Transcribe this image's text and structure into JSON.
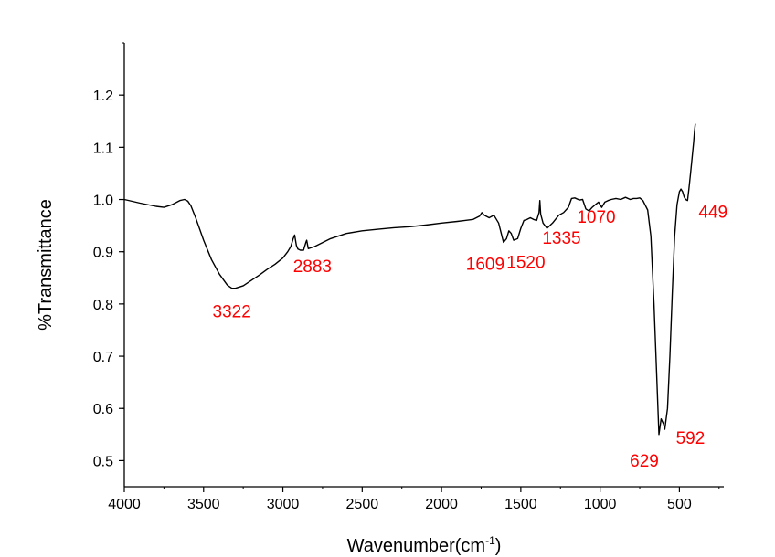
{
  "chart_data": {
    "type": "line",
    "title": "",
    "xlabel": "Wavenumber(cm",
    "xlabel_sup": "-1",
    "xlabel_close": ")",
    "ylabel": "%Transmittance",
    "xlim": [
      4000,
      220
    ],
    "ylim": [
      0.45,
      1.3
    ],
    "x_reversed": true,
    "grid": false,
    "x_ticks": [
      4000,
      3500,
      3000,
      2500,
      2000,
      1500,
      1000,
      500
    ],
    "x_tick_labels": [
      "4000",
      "3500",
      "3000",
      "2500",
      "2000",
      "1500",
      "1000",
      "500"
    ],
    "y_ticks": [
      0.5,
      0.6,
      0.7,
      0.8,
      0.9,
      1.0,
      1.1,
      1.2
    ],
    "y_tick_labels": [
      "0.5",
      "0.6",
      "0.7",
      "0.8",
      "0.9",
      "1.0",
      "1.1",
      "1.2"
    ],
    "annotation_color": "#ff0000",
    "line_color": "#000000",
    "annotations": [
      {
        "text": "3322",
        "x": 3322,
        "y": 0.83
      },
      {
        "text": "2883",
        "x": 2883,
        "y": 0.905
      },
      {
        "text": "1609",
        "x": 1609,
        "y": 0.92
      },
      {
        "text": "1520",
        "x": 1520,
        "y": 0.92
      },
      {
        "text": "1335",
        "x": 1335,
        "y": 0.95
      },
      {
        "text": "1070",
        "x": 1070,
        "y": 0.985
      },
      {
        "text": "629",
        "x": 629,
        "y": 0.55
      },
      {
        "text": "592",
        "x": 592,
        "y": 0.56
      },
      {
        "text": "449",
        "x": 449,
        "y": 1.0
      }
    ],
    "series": [
      {
        "x": [
          4000,
          3900,
          3800,
          3750,
          3700,
          3650,
          3620,
          3600,
          3580,
          3550,
          3500,
          3450,
          3400,
          3350,
          3322,
          3300,
          3250,
          3200,
          3150,
          3100,
          3050,
          3000,
          2970,
          2950,
          2935,
          2926,
          2915,
          2905,
          2890,
          2870,
          2855,
          2850,
          2840,
          2800,
          2700,
          2600,
          2500,
          2400,
          2300,
          2200,
          2100,
          2000,
          1900,
          1800,
          1760,
          1745,
          1730,
          1700,
          1670,
          1640,
          1609,
          1590,
          1575,
          1560,
          1545,
          1520,
          1500,
          1480,
          1460,
          1440,
          1420,
          1400,
          1385,
          1380,
          1375,
          1360,
          1335,
          1300,
          1260,
          1230,
          1200,
          1180,
          1160,
          1130,
          1110,
          1090,
          1070,
          1050,
          1030,
          1010,
          990,
          970,
          950,
          930,
          900,
          870,
          840,
          810,
          790,
          770,
          750,
          730,
          700,
          680,
          660,
          645,
          629,
          615,
          600,
          592,
          575,
          560,
          545,
          530,
          515,
          500,
          490,
          480,
          470,
          460,
          449,
          440,
          430,
          420,
          410,
          405,
          400
        ],
        "y": [
          1.0,
          0.993,
          0.987,
          0.985,
          0.99,
          0.998,
          1.0,
          0.997,
          0.988,
          0.965,
          0.922,
          0.885,
          0.857,
          0.836,
          0.83,
          0.83,
          0.835,
          0.845,
          0.855,
          0.866,
          0.876,
          0.888,
          0.9,
          0.91,
          0.925,
          0.932,
          0.912,
          0.905,
          0.903,
          0.903,
          0.918,
          0.922,
          0.906,
          0.91,
          0.925,
          0.935,
          0.94,
          0.943,
          0.946,
          0.948,
          0.951,
          0.955,
          0.958,
          0.962,
          0.968,
          0.975,
          0.97,
          0.965,
          0.97,
          0.955,
          0.918,
          0.925,
          0.94,
          0.935,
          0.922,
          0.925,
          0.945,
          0.96,
          0.962,
          0.965,
          0.962,
          0.96,
          0.975,
          0.998,
          0.972,
          0.955,
          0.945,
          0.955,
          0.97,
          0.975,
          0.985,
          1.002,
          1.003,
          0.999,
          1.0,
          0.982,
          0.978,
          0.985,
          0.99,
          0.995,
          0.985,
          0.995,
          0.998,
          1.0,
          1.002,
          1.0,
          1.004,
          1.0,
          1.002,
          1.002,
          1.003,
          0.998,
          0.98,
          0.93,
          0.8,
          0.68,
          0.55,
          0.58,
          0.57,
          0.56,
          0.6,
          0.7,
          0.82,
          0.93,
          0.99,
          1.015,
          1.02,
          1.015,
          1.005,
          1.0,
          0.998,
          1.02,
          1.05,
          1.08,
          1.11,
          1.13,
          1.145
        ]
      }
    ]
  }
}
